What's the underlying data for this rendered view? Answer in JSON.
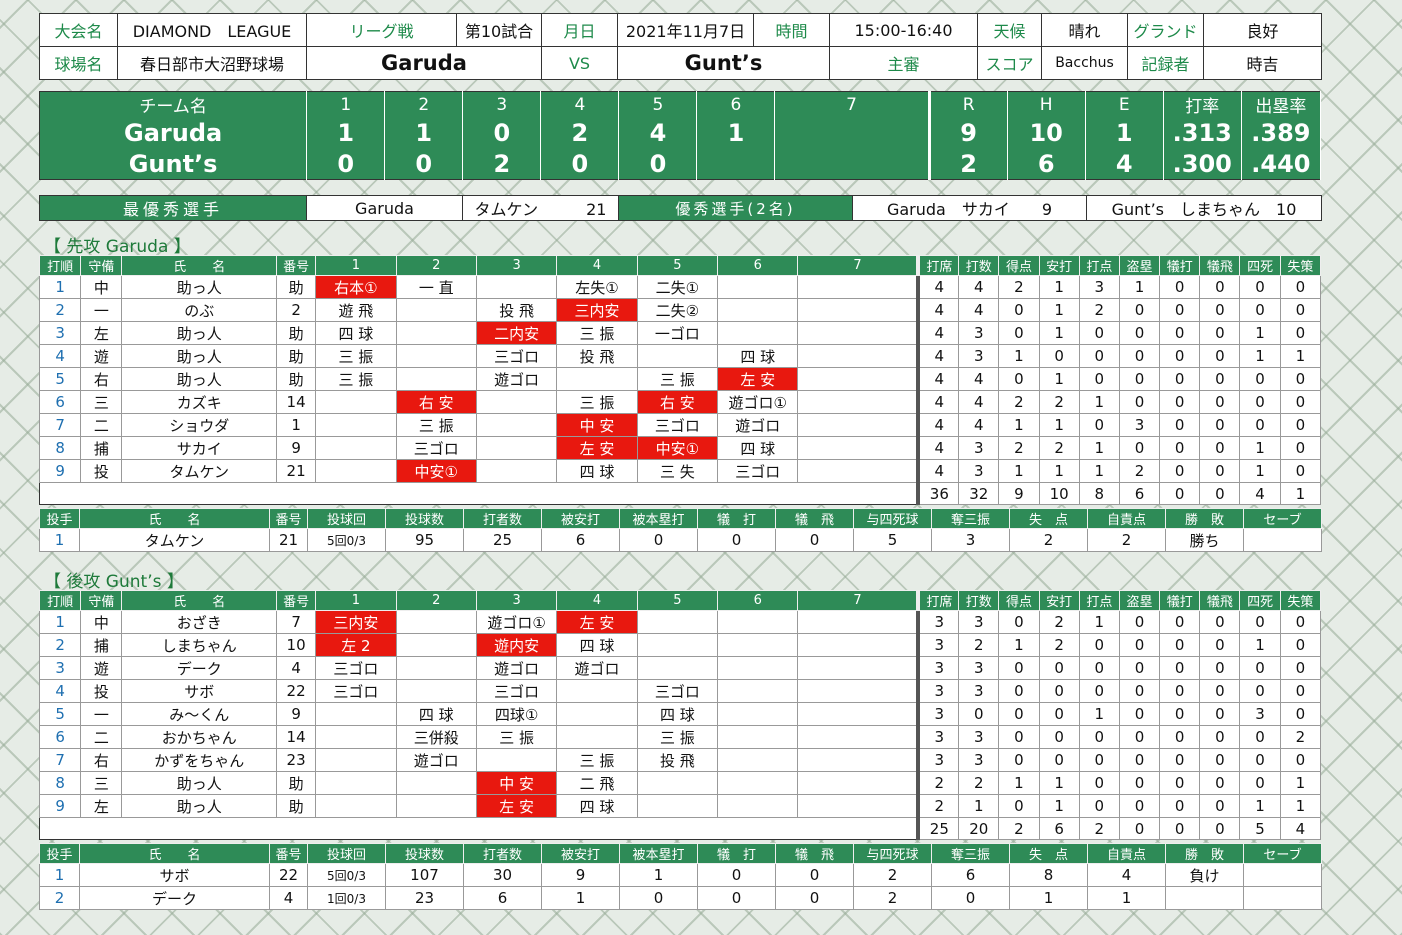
{
  "header": {
    "tournament_label": "大会名",
    "tournament": "DIAMOND　LEAGUE",
    "league_label": "リーグ戦",
    "game_no": "第10試合",
    "date_label": "月日",
    "date": "2021年11月7日",
    "time_label": "時間",
    "time": "15:00-16:40",
    "weather_label": "天候",
    "weather": "晴れ",
    "ground_label": "グランド",
    "ground": "良好",
    "stadium_label": "球場名",
    "stadium": "春日部市大沼野球場",
    "team1": "Garuda",
    "vs": "VS",
    "team2": "Gunt’s",
    "umpire_label": "主審",
    "umpire": "",
    "score_label": "スコア",
    "scorer": "Bacchus",
    "recorder_label": "記録者",
    "recorder": "時吉"
  },
  "scoreboard": {
    "headers": [
      "チーム名",
      "1",
      "2",
      "3",
      "4",
      "5",
      "6",
      "7",
      "R",
      "H",
      "E",
      "打率",
      "出塁率"
    ],
    "rows": [
      {
        "team": "Garuda",
        "innings": [
          "1",
          "1",
          "0",
          "2",
          "4",
          "1",
          ""
        ],
        "R": "9",
        "H": "10",
        "E": "1",
        "avg": ".313",
        "obp": ".389"
      },
      {
        "team": "Gunt’s",
        "innings": [
          "0",
          "0",
          "2",
          "0",
          "0",
          "",
          ""
        ],
        "R": "2",
        "H": "6",
        "E": "4",
        "avg": ".300",
        "obp": ".440"
      }
    ]
  },
  "mvp": {
    "mvp_label": "最優秀選手",
    "mvp_team": "Garuda",
    "mvp_name": "タムケン",
    "mvp_no": "21",
    "good_label": "優秀選手(2名)",
    "g1_team": "Garuda",
    "g1_name": "サカイ",
    "g1_no": "9",
    "g2_team": "Gunt’s",
    "g2_name": "しまちゃん",
    "g2_no": "10"
  },
  "bat_headers": [
    "打順",
    "守備",
    "氏　　名",
    "番号",
    "1",
    "2",
    "3",
    "4",
    "5",
    "6",
    "7",
    "打席",
    "打数",
    "得点",
    "安打",
    "打点",
    "盗塁",
    "犠打",
    "犠飛",
    "四死",
    "失策"
  ],
  "pitch_headers": [
    "投手",
    "氏　　名",
    "番号",
    "投球回",
    "投球数",
    "打者数",
    "被安打",
    "被本塁打",
    "犠　打",
    "犠　飛",
    "与四死球",
    "奪三振",
    "失　点",
    "自責点",
    "勝　敗",
    "セーブ"
  ],
  "top": {
    "title": "【 先攻 Garuda 】",
    "batters": [
      {
        "o": "1",
        "pos": "中",
        "name": "助っ人",
        "no": "助",
        "inn": [
          "右本①",
          "一 直",
          "",
          "左失①",
          "二失①",
          "",
          ""
        ],
        "red": [
          0
        ],
        "st": [
          "4",
          "4",
          "2",
          "1",
          "3",
          "1",
          "0",
          "0",
          "0",
          "0"
        ]
      },
      {
        "o": "2",
        "pos": "一",
        "name": "のぶ",
        "no": "2",
        "inn": [
          "遊 飛",
          "",
          "投 飛",
          "三内安",
          "二失②",
          "",
          ""
        ],
        "red": [
          3
        ],
        "st": [
          "4",
          "4",
          "0",
          "1",
          "2",
          "0",
          "0",
          "0",
          "0",
          "0"
        ]
      },
      {
        "o": "3",
        "pos": "左",
        "name": "助っ人",
        "no": "助",
        "inn": [
          "四 球",
          "",
          "二内安",
          "三 振",
          "一ゴロ",
          "",
          ""
        ],
        "red": [
          2
        ],
        "st": [
          "4",
          "3",
          "0",
          "1",
          "0",
          "0",
          "0",
          "0",
          "1",
          "0"
        ]
      },
      {
        "o": "4",
        "pos": "遊",
        "name": "助っ人",
        "no": "助",
        "inn": [
          "三 振",
          "",
          "三ゴロ",
          "投 飛",
          "",
          "四 球",
          ""
        ],
        "red": [],
        "st": [
          "4",
          "3",
          "1",
          "0",
          "0",
          "0",
          "0",
          "0",
          "1",
          "1"
        ]
      },
      {
        "o": "5",
        "pos": "右",
        "name": "助っ人",
        "no": "助",
        "inn": [
          "三 振",
          "",
          "遊ゴロ",
          "",
          "三 振",
          "左 安",
          ""
        ],
        "red": [
          5
        ],
        "st": [
          "4",
          "4",
          "0",
          "1",
          "0",
          "0",
          "0",
          "0",
          "0",
          "0"
        ]
      },
      {
        "o": "6",
        "pos": "三",
        "name": "カズキ",
        "no": "14",
        "inn": [
          "",
          "右 安",
          "",
          "三 振",
          "右 安",
          "遊ゴロ①",
          ""
        ],
        "red": [
          1,
          4
        ],
        "st": [
          "4",
          "4",
          "2",
          "2",
          "1",
          "0",
          "0",
          "0",
          "0",
          "0"
        ]
      },
      {
        "o": "7",
        "pos": "二",
        "name": "ショウダ",
        "no": "1",
        "inn": [
          "",
          "三 振",
          "",
          "中 安",
          "三ゴロ",
          "遊ゴロ",
          ""
        ],
        "red": [
          3
        ],
        "st": [
          "4",
          "4",
          "1",
          "1",
          "0",
          "3",
          "0",
          "0",
          "0",
          "0"
        ]
      },
      {
        "o": "8",
        "pos": "捕",
        "name": "サカイ",
        "no": "9",
        "inn": [
          "",
          "三ゴロ",
          "",
          "左 安",
          "中安①",
          "四 球",
          ""
        ],
        "red": [
          3,
          4
        ],
        "st": [
          "4",
          "3",
          "2",
          "2",
          "1",
          "0",
          "0",
          "0",
          "1",
          "0"
        ]
      },
      {
        "o": "9",
        "pos": "投",
        "name": "タムケン",
        "no": "21",
        "inn": [
          "",
          "中安①",
          "",
          "四 球",
          "三 失",
          "三ゴロ",
          ""
        ],
        "red": [
          1
        ],
        "st": [
          "4",
          "3",
          "1",
          "1",
          "1",
          "2",
          "0",
          "0",
          "1",
          "0"
        ]
      }
    ],
    "totals": [
      "36",
      "32",
      "9",
      "10",
      "8",
      "6",
      "0",
      "0",
      "4",
      "1"
    ],
    "pitchers": [
      {
        "o": "1",
        "name": "タムケン",
        "no": "21",
        "ip": "5回0/3",
        "np": "95",
        "bf": "25",
        "h": "6",
        "hr": "0",
        "sh": "0",
        "sf": "0",
        "bb": "5",
        "so": "3",
        "r": "2",
        "er": "2",
        "wl": "勝ち",
        "sv": ""
      }
    ]
  },
  "bottom": {
    "title": "【 後攻 Gunt’s 】",
    "batters": [
      {
        "o": "1",
        "pos": "中",
        "name": "おざき",
        "no": "7",
        "inn": [
          "三内安",
          "",
          "遊ゴロ①",
          "左 安",
          "",
          "",
          ""
        ],
        "red": [
          0,
          3
        ],
        "st": [
          "3",
          "3",
          "0",
          "2",
          "1",
          "0",
          "0",
          "0",
          "0",
          "0"
        ]
      },
      {
        "o": "2",
        "pos": "捕",
        "name": "しまちゃん",
        "no": "10",
        "inn": [
          "左 2",
          "",
          "遊内安",
          "四 球",
          "",
          "",
          ""
        ],
        "red": [
          0,
          2
        ],
        "st": [
          "3",
          "2",
          "1",
          "2",
          "0",
          "0",
          "0",
          "0",
          "1",
          "0"
        ]
      },
      {
        "o": "3",
        "pos": "遊",
        "name": "デーク",
        "no": "4",
        "inn": [
          "三ゴロ",
          "",
          "遊ゴロ",
          "遊ゴロ",
          "",
          "",
          ""
        ],
        "red": [],
        "st": [
          "3",
          "3",
          "0",
          "0",
          "0",
          "0",
          "0",
          "0",
          "0",
          "0"
        ]
      },
      {
        "o": "4",
        "pos": "投",
        "name": "サボ",
        "no": "22",
        "inn": [
          "三ゴロ",
          "",
          "三ゴロ",
          "",
          "三ゴロ",
          "",
          ""
        ],
        "red": [],
        "st": [
          "3",
          "3",
          "0",
          "0",
          "0",
          "0",
          "0",
          "0",
          "0",
          "0"
        ]
      },
      {
        "o": "5",
        "pos": "一",
        "name": "み～くん",
        "no": "9",
        "inn": [
          "",
          "四 球",
          "四球①",
          "",
          "四 球",
          "",
          ""
        ],
        "red": [],
        "st": [
          "3",
          "0",
          "0",
          "0",
          "1",
          "0",
          "0",
          "0",
          "3",
          "0"
        ]
      },
      {
        "o": "6",
        "pos": "二",
        "name": "おかちゃん",
        "no": "14",
        "inn": [
          "",
          "三併殺",
          "三 振",
          "",
          "三 振",
          "",
          ""
        ],
        "red": [],
        "st": [
          "3",
          "3",
          "0",
          "0",
          "0",
          "0",
          "0",
          "0",
          "0",
          "2"
        ]
      },
      {
        "o": "7",
        "pos": "右",
        "name": "かずをちゃん",
        "no": "23",
        "inn": [
          "",
          "遊ゴロ",
          "",
          "三 振",
          "投 飛",
          "",
          ""
        ],
        "red": [],
        "st": [
          "3",
          "3",
          "0",
          "0",
          "0",
          "0",
          "0",
          "0",
          "0",
          "0"
        ]
      },
      {
        "o": "8",
        "pos": "三",
        "name": "助っ人",
        "no": "助",
        "inn": [
          "",
          "",
          "中 安",
          "二 飛",
          "",
          "",
          ""
        ],
        "red": [
          2
        ],
        "st": [
          "2",
          "2",
          "1",
          "1",
          "0",
          "0",
          "0",
          "0",
          "0",
          "1"
        ]
      },
      {
        "o": "9",
        "pos": "左",
        "name": "助っ人",
        "no": "助",
        "inn": [
          "",
          "",
          "左 安",
          "四 球",
          "",
          "",
          ""
        ],
        "red": [
          2
        ],
        "st": [
          "2",
          "1",
          "0",
          "1",
          "0",
          "0",
          "0",
          "0",
          "1",
          "1"
        ]
      }
    ],
    "totals": [
      "25",
      "20",
      "2",
      "6",
      "2",
      "0",
      "0",
      "0",
      "5",
      "4"
    ],
    "pitchers": [
      {
        "o": "1",
        "name": "サボ",
        "no": "22",
        "ip": "5回0/3",
        "np": "107",
        "bf": "30",
        "h": "9",
        "hr": "1",
        "sh": "0",
        "sf": "0",
        "bb": "2",
        "so": "6",
        "r": "8",
        "er": "4",
        "wl": "負け",
        "sv": ""
      },
      {
        "o": "2",
        "name": "デーク",
        "no": "4",
        "ip": "1回0/3",
        "np": "23",
        "bf": "6",
        "h": "1",
        "hr": "0",
        "sh": "0",
        "sf": "0",
        "bb": "2",
        "so": "0",
        "r": "1",
        "er": "1",
        "wl": "",
        "sv": ""
      }
    ]
  }
}
